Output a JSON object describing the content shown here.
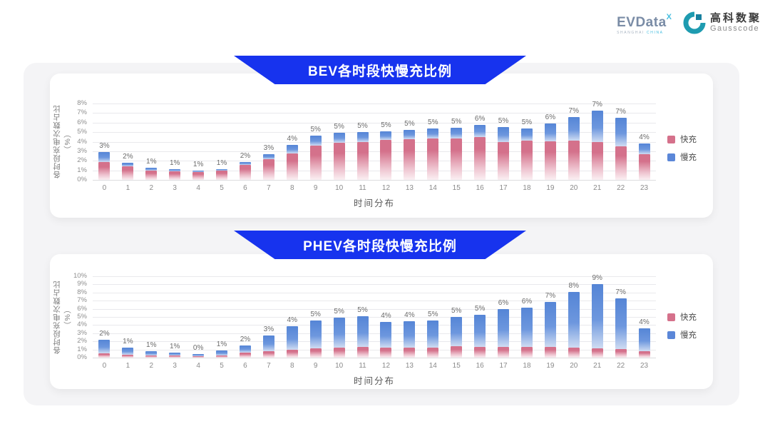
{
  "header": {
    "evdata": {
      "text": "EVData",
      "superscript": "X",
      "subtext_city": "SHANGHAI",
      "subtext_country": "CHINA"
    },
    "gausscode": {
      "name_cn": "高科数聚",
      "name_en": "Gausscode"
    }
  },
  "colors": {
    "fast": "#D5718B",
    "slow": "#5B87D8",
    "banner_blue": "#1733EE",
    "evdata_gray": "#7A8CA6",
    "evdata_cyan": "#45BEE0",
    "gauss_teal": "#1E9BB0"
  },
  "chart_data": [
    {
      "type": "bar",
      "stacked": true,
      "title": "BEV各时段快慢充比例",
      "xlabel": "时间分布",
      "ylabel": "各时段充电次数占比（%）",
      "ylim": [
        0,
        8
      ],
      "ytick_step": 1,
      "grid": true,
      "legend_position": "right",
      "categories": [
        0,
        1,
        2,
        3,
        4,
        5,
        6,
        7,
        8,
        9,
        10,
        11,
        12,
        13,
        14,
        15,
        16,
        17,
        18,
        19,
        20,
        21,
        22,
        23
      ],
      "series": [
        {
          "name": "快充",
          "color": "#D5718B",
          "values": [
            1.9,
            1.4,
            1.0,
            0.9,
            0.85,
            0.95,
            1.6,
            2.2,
            2.8,
            3.6,
            3.9,
            4.0,
            4.15,
            4.25,
            4.35,
            4.35,
            4.5,
            4.0,
            4.1,
            4.05,
            4.1,
            3.95,
            3.55,
            2.7
          ]
        },
        {
          "name": "慢充",
          "color": "#5B87D8",
          "values": [
            1.0,
            0.4,
            0.3,
            0.2,
            0.1,
            0.2,
            0.3,
            0.5,
            0.85,
            1.0,
            1.0,
            1.0,
            0.9,
            1.0,
            1.05,
            1.1,
            1.25,
            1.5,
            1.3,
            1.85,
            2.5,
            3.3,
            2.95,
            1.1
          ]
        }
      ],
      "total_labels": [
        "3%",
        "2%",
        "1%",
        "1%",
        "1%",
        "1%",
        "2%",
        "3%",
        "4%",
        "5%",
        "5%",
        "5%",
        "5%",
        "5%",
        "5%",
        "5%",
        "6%",
        "5%",
        "5%",
        "6%",
        "7%",
        "7%",
        "7%",
        "4%"
      ]
    },
    {
      "type": "bar",
      "stacked": true,
      "title": "PHEV各时段快慢充比例",
      "xlabel": "时间分布",
      "ylabel": "各时段充电次数占比（%）",
      "ylim": [
        0,
        10
      ],
      "ytick_step": 1,
      "grid": true,
      "legend_position": "right",
      "categories": [
        0,
        1,
        2,
        3,
        4,
        5,
        6,
        7,
        8,
        9,
        10,
        11,
        12,
        13,
        14,
        15,
        16,
        17,
        18,
        19,
        20,
        21,
        22,
        23
      ],
      "series": [
        {
          "name": "快充",
          "color": "#D5718B",
          "values": [
            0.5,
            0.35,
            0.3,
            0.25,
            0.2,
            0.3,
            0.6,
            0.8,
            1.0,
            1.1,
            1.2,
            1.3,
            1.2,
            1.2,
            1.25,
            1.4,
            1.3,
            1.35,
            1.35,
            1.3,
            1.2,
            1.1,
            1.05,
            0.8
          ]
        },
        {
          "name": "慢充",
          "color": "#5B87D8",
          "values": [
            1.7,
            0.85,
            0.5,
            0.35,
            0.25,
            0.55,
            0.9,
            1.95,
            2.9,
            3.5,
            3.7,
            3.8,
            3.2,
            3.3,
            3.35,
            3.6,
            4.0,
            4.6,
            4.75,
            5.5,
            6.85,
            7.9,
            6.25,
            2.8
          ]
        }
      ],
      "total_labels": [
        "2%",
        "1%",
        "1%",
        "1%",
        "0%",
        "1%",
        "2%",
        "3%",
        "4%",
        "5%",
        "5%",
        "5%",
        "4%",
        "4%",
        "5%",
        "5%",
        "5%",
        "6%",
        "6%",
        "7%",
        "8%",
        "9%",
        "7%",
        "4%"
      ]
    }
  ]
}
